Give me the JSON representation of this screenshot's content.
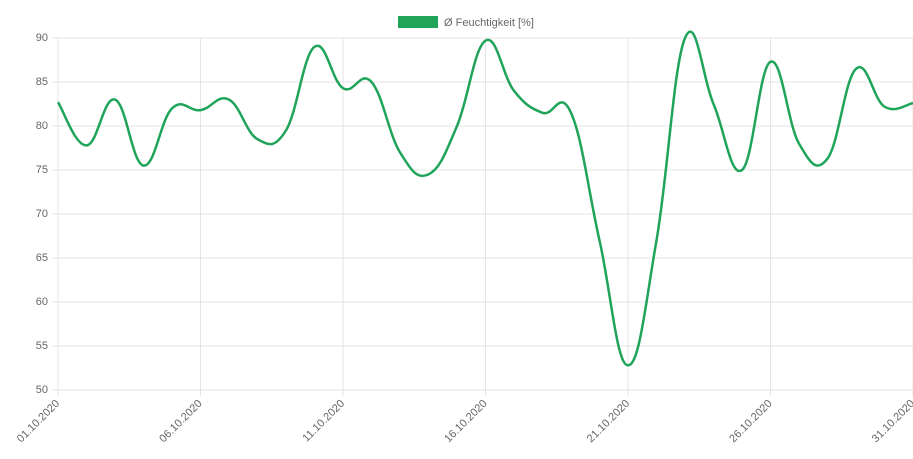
{
  "chart_data": {
    "type": "line",
    "categories": [
      "01.10.2020",
      null,
      null,
      null,
      null,
      "06.10.2020",
      null,
      null,
      null,
      null,
      "11.10.2020",
      null,
      null,
      null,
      null,
      "16.10.2020",
      null,
      null,
      null,
      null,
      "21.10.2020",
      null,
      null,
      null,
      null,
      "26.10.2020",
      null,
      null,
      null,
      null,
      "31.10.2020"
    ],
    "series": [
      {
        "name": "Ø Feuchtigkeit [%]",
        "color": "#1fa45a",
        "values": [
          82.7,
          77.8,
          83,
          75.5,
          82,
          81.8,
          83,
          78.5,
          79.5,
          89,
          84.3,
          85,
          77,
          74.5,
          80,
          89.7,
          84,
          81.5,
          81.5,
          67,
          52.8,
          67,
          90,
          82.5,
          75,
          87.3,
          78,
          76.3,
          86.5,
          82.2,
          82.6
        ]
      }
    ],
    "ylim": [
      50,
      90
    ],
    "yticks": [
      50,
      55,
      60,
      65,
      70,
      75,
      80,
      85,
      90
    ],
    "grid": true,
    "legend": "top"
  }
}
